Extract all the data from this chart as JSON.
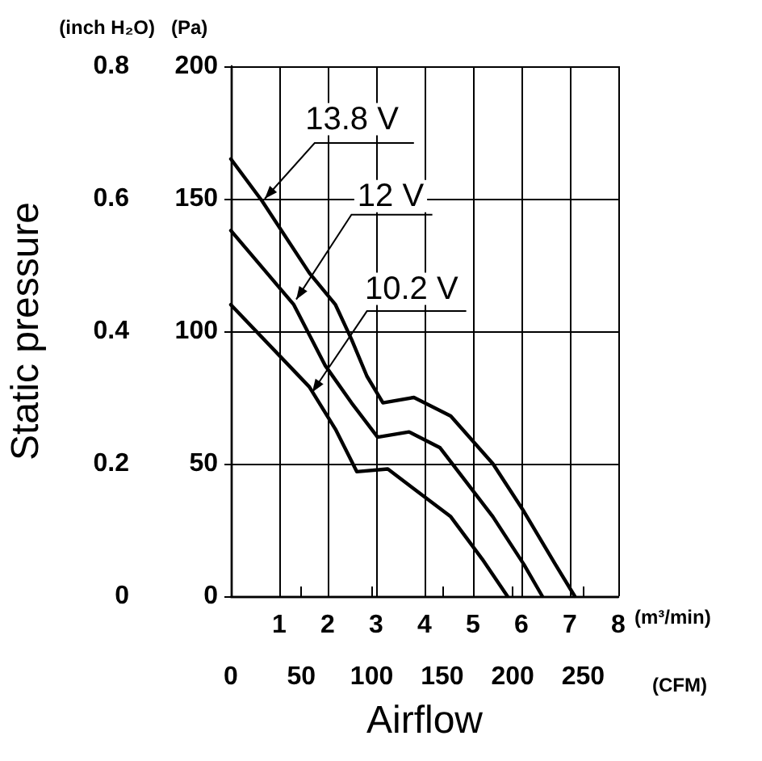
{
  "chart_data": {
    "type": "line",
    "xlabel": "Airflow",
    "ylabel": "Static pressure",
    "y2label": "(Pa)",
    "x2label": "(CFM)",
    "annotations": [
      "(inch H₂O)",
      "(m³/min)"
    ],
    "xlim": [
      0,
      8
    ],
    "xticks": [
      1,
      2,
      3,
      4,
      5,
      6,
      7,
      8
    ],
    "ylim": [
      0,
      0.8
    ],
    "yticks": [
      0,
      0.2,
      0.4,
      0.6,
      0.8
    ],
    "y2lim": [
      0,
      200
    ],
    "y2ticks": [
      0,
      50,
      100,
      150,
      200
    ],
    "x2lim": [
      0,
      275
    ],
    "x2ticks": [
      0,
      50,
      100,
      150,
      200,
      250
    ],
    "grid": true,
    "marker": "none",
    "line_style": "solid",
    "series": [
      {
        "name": "13.8 V",
        "color": "#000000",
        "axis": "y2",
        "x": [
          0,
          0.65,
          1.62,
          2.16,
          2.49,
          2.81,
          3.14,
          3.78,
          4.54,
          5.41,
          6.05,
          6.7,
          7.1
        ],
        "values": [
          165,
          149,
          122,
          110,
          97,
          83,
          73,
          75,
          68,
          50,
          32,
          12,
          0
        ]
      },
      {
        "name": "12 V",
        "color": "#000000",
        "axis": "y2",
        "x": [
          0,
          1.3,
          1.95,
          2.49,
          3.03,
          3.68,
          4.32,
          5.41,
          6.05,
          6.43
        ],
        "values": [
          138,
          110,
          87,
          73,
          60,
          62,
          56,
          30,
          12,
          0
        ]
      },
      {
        "name": "10.2 V",
        "color": "#000000",
        "axis": "y2",
        "x": [
          0,
          1.62,
          2.16,
          2.6,
          3.24,
          4.54,
          5.19,
          5.71
        ],
        "values": [
          110,
          79,
          63,
          47,
          48,
          30,
          14,
          0
        ]
      }
    ]
  }
}
